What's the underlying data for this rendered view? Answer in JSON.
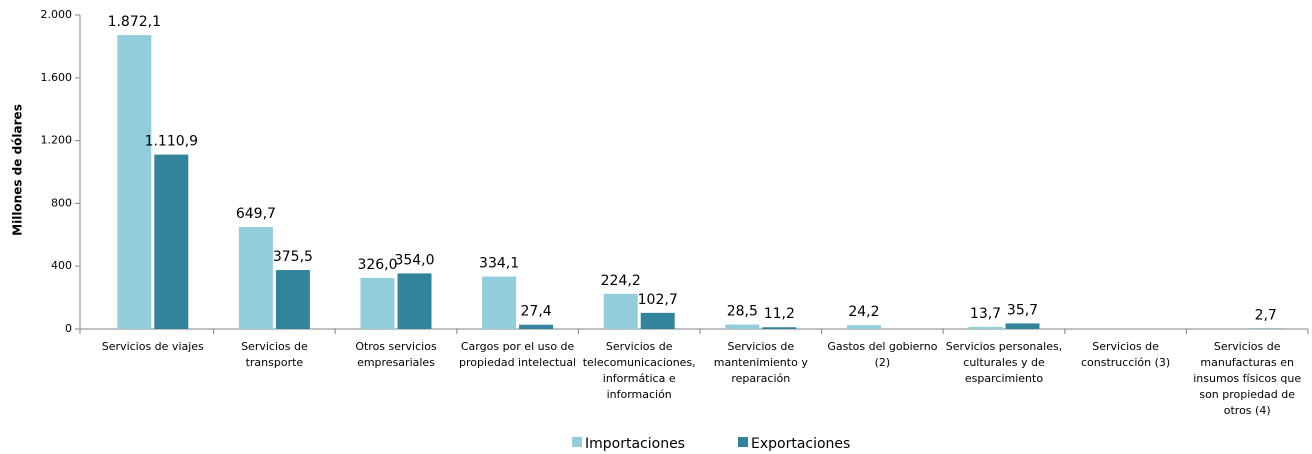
{
  "chart_data": {
    "type": "bar",
    "y_label": "Millones de dólares",
    "categories": [
      "Servicios de viajes",
      "Servicios de transporte",
      "Otros servicios empresariales",
      "Cargos por el uso de propiedad intelectual",
      "Servicios de telecomunicaciones, informática e información",
      "Servicios de mantenimiento y reparación",
      "Gastos del gobierno (2)",
      "Servicios personales, culturales y de esparcimiento",
      "Servicios de construcción (3)",
      "Servicios de manufacturas en insumos físicos que son propiedad de otros (4)"
    ],
    "series": [
      {
        "name": "Importaciones",
        "color": "#92cddc",
        "values": [
          1872.1,
          649.7,
          326.0,
          334.1,
          224.2,
          28.5,
          24.2,
          13.7,
          null,
          null
        ],
        "value_labels": [
          "1.872,1",
          "649,7",
          "326,0",
          "334,1",
          "224,2",
          "28,5",
          "24,2",
          "13,7",
          null,
          null
        ]
      },
      {
        "name": "Exportaciones",
        "color": "#31849b",
        "values": [
          1110.9,
          375.5,
          354.0,
          27.4,
          102.7,
          11.2,
          null,
          35.7,
          null,
          2.7
        ],
        "value_labels": [
          "1.110,9",
          "375,5",
          "354,0",
          "27,4",
          "102,7",
          "11,2",
          null,
          "35,7",
          null,
          "2,7"
        ]
      }
    ],
    "ylim": [
      0,
      2000
    ],
    "yticks": [
      0,
      400,
      800,
      {
        "value": 1200,
        "label": "1.200"
      },
      {
        "value": 1600,
        "label": "1.600"
      },
      {
        "value": 2000,
        "label": "2.000"
      }
    ],
    "legend": "bottom"
  }
}
